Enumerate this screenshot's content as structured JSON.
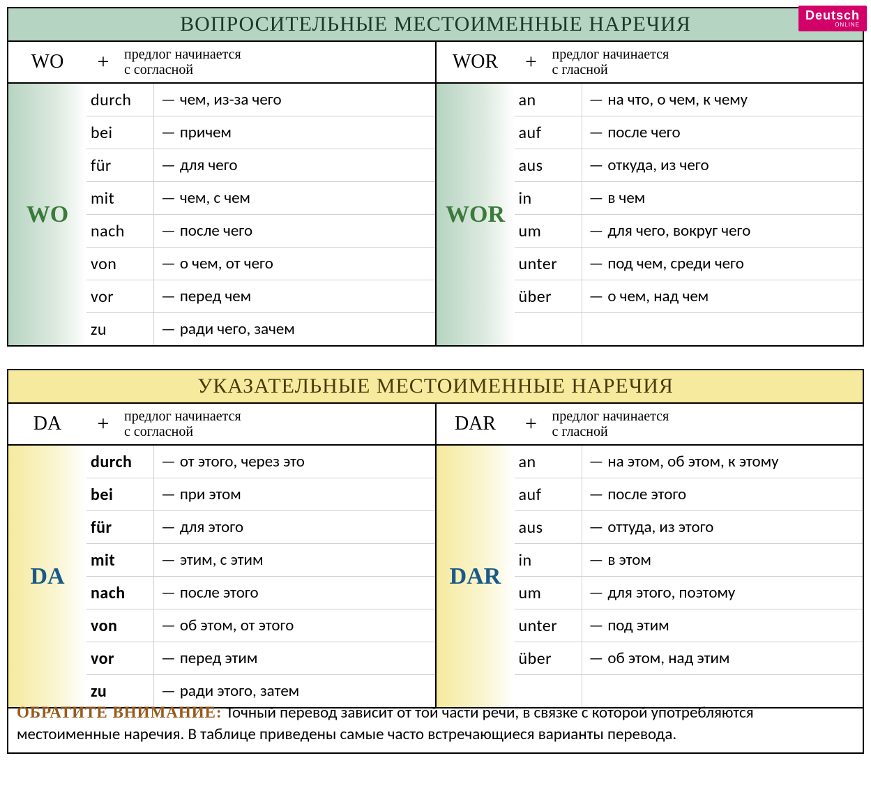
{
  "badge": {
    "main": "Deutsch",
    "sub": "ONLINE"
  },
  "sections": [
    {
      "title": "ВОПРОСИТЕЛЬНЫЕ МЕСТОИМЕННЫЕ НАРЕЧИЯ",
      "title_bg": "green",
      "stem_style": "green",
      "has_badge": true,
      "cols": [
        {
          "header_prefix": "WO",
          "header_plus": "+",
          "header_note": "предлог начинается\nс согласной",
          "stem": "WO",
          "prep_bold": false,
          "rows": [
            {
              "prep": "durch",
              "trans": "чем, из-за чего"
            },
            {
              "prep": "bei",
              "trans": "причем"
            },
            {
              "prep": "für",
              "trans": "для чего"
            },
            {
              "prep": "mit",
              "trans": "чем, с чем"
            },
            {
              "prep": "nach",
              "trans": "после чего"
            },
            {
              "prep": "von",
              "trans": "о чем, от чего"
            },
            {
              "prep": "vor",
              "trans": "перед чем"
            },
            {
              "prep": "zu",
              "trans": "ради чего, зачем"
            }
          ]
        },
        {
          "header_prefix": "WOR",
          "header_plus": "+",
          "header_note": "предлог начинается\nс гласной",
          "stem": "WOR",
          "prep_bold": false,
          "rows": [
            {
              "prep": "an",
              "trans": "на что, о чем, к чему"
            },
            {
              "prep": "auf",
              "trans": "после чего"
            },
            {
              "prep": "aus",
              "trans": "откуда, из чего"
            },
            {
              "prep": "in",
              "trans": "в чем"
            },
            {
              "prep": "um",
              "trans": "для чего, вокруг чего"
            },
            {
              "prep": "unter",
              "trans": "под чем, среди чего"
            },
            {
              "prep": "über",
              "trans": "о чем, над чем"
            },
            {
              "prep": "",
              "trans": ""
            }
          ]
        }
      ]
    },
    {
      "title": "УКАЗАТЕЛЬНЫЕ МЕСТОИМЕННЫЕ НАРЕЧИЯ",
      "title_bg": "yellow",
      "stem_style": "yellow",
      "has_badge": false,
      "cols": [
        {
          "header_prefix": "DA",
          "header_plus": "+",
          "header_note": "предлог начинается\nс согласной",
          "stem": "DA",
          "prep_bold": true,
          "rows": [
            {
              "prep": "durch",
              "trans": "от этого, через это"
            },
            {
              "prep": "bei",
              "trans": "при этом"
            },
            {
              "prep": "für",
              "trans": "для этого"
            },
            {
              "prep": "mit",
              "trans": "этим, с этим"
            },
            {
              "prep": "nach",
              "trans": "после этого"
            },
            {
              "prep": "von",
              "trans": "об этом, от этого"
            },
            {
              "prep": "vor",
              "trans": "перед этим"
            },
            {
              "prep": "zu",
              "trans": "ради этого, затем"
            }
          ]
        },
        {
          "header_prefix": "DAR",
          "header_plus": "+",
          "header_note": "предлог начинается\nс гласной",
          "stem": "DAR",
          "prep_bold": false,
          "rows": [
            {
              "prep": "an",
              "trans": "на этом, об этом, к этому"
            },
            {
              "prep": "auf",
              "trans": "после этого"
            },
            {
              "prep": "aus",
              "trans": "оттуда, из этого"
            },
            {
              "prep": "in",
              "trans": "в этом"
            },
            {
              "prep": "um",
              "trans": "для этого, поэтому"
            },
            {
              "prep": "unter",
              "trans": "под этим"
            },
            {
              "prep": "über",
              "trans": "об этом, над этим"
            },
            {
              "prep": "",
              "trans": ""
            }
          ]
        }
      ]
    }
  ],
  "footnote": {
    "lead": "ОБРАТИТЕ ВНИМАНИЕ:",
    "text": "Точный перевод зависит от той части речи, в связке с которой употребляются местоименные наречия. В таблице приведены самые часто встречающиеся варианты перевода."
  },
  "colors": {
    "green_bg": "#b6d4c2",
    "yellow_bg": "#f5ea9e",
    "badge_bg": "#d4006a",
    "stem_green_text": "#3a7a3a",
    "stem_blue_text": "#1a5a8a",
    "footnote_lead": "#9a5a1a"
  }
}
